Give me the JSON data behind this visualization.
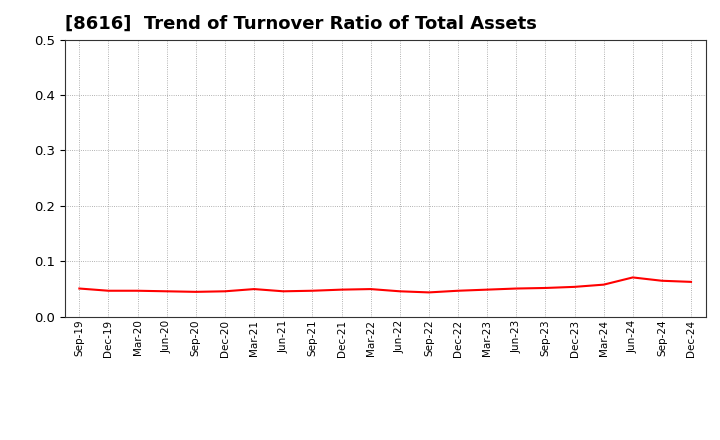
{
  "title": "[8616]  Trend of Turnover Ratio of Total Assets",
  "title_fontsize": 13,
  "line_color": "#FF0000",
  "line_width": 1.5,
  "background_color": "#FFFFFF",
  "grid_color": "#999999",
  "ylim": [
    0.0,
    0.5
  ],
  "yticks": [
    0.0,
    0.1,
    0.2,
    0.3,
    0.4,
    0.5
  ],
  "x_labels": [
    "Sep-19",
    "Dec-19",
    "Mar-20",
    "Jun-20",
    "Sep-20",
    "Dec-20",
    "Mar-21",
    "Jun-21",
    "Sep-21",
    "Dec-21",
    "Mar-22",
    "Jun-22",
    "Sep-22",
    "Dec-22",
    "Mar-23",
    "Jun-23",
    "Sep-23",
    "Dec-23",
    "Mar-24",
    "Jun-24",
    "Sep-24",
    "Dec-24"
  ],
  "values": [
    0.051,
    0.047,
    0.047,
    0.046,
    0.045,
    0.046,
    0.05,
    0.046,
    0.047,
    0.049,
    0.05,
    0.046,
    0.044,
    0.047,
    0.049,
    0.051,
    0.052,
    0.054,
    0.058,
    0.071,
    0.065,
    0.063
  ]
}
